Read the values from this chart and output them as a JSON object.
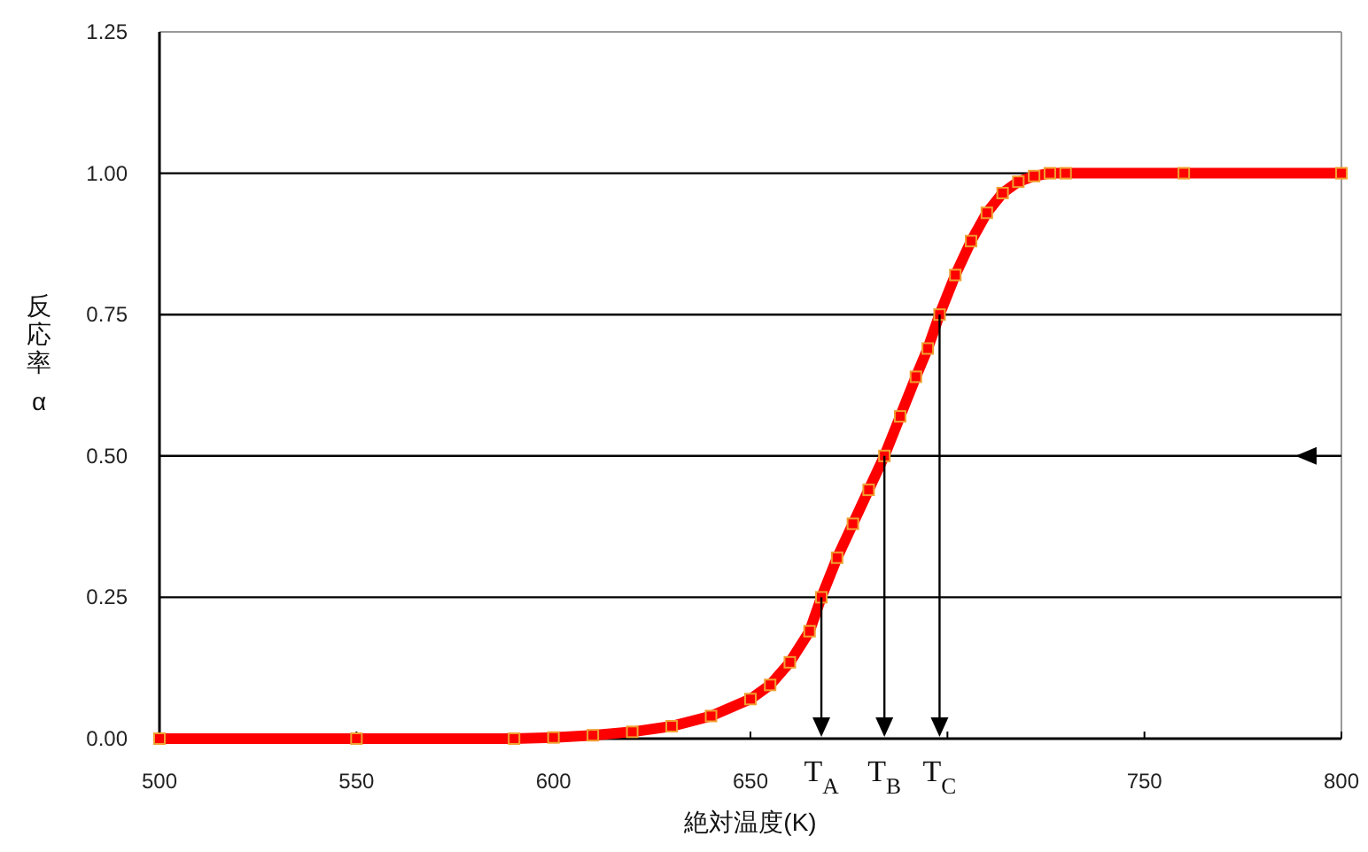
{
  "chart_data": {
    "type": "line",
    "xlabel": "絶対温度(K)",
    "ylabel": "反応率 α",
    "x": [
      500,
      550,
      590,
      600,
      610,
      620,
      630,
      640,
      650,
      655,
      660,
      665,
      668,
      672,
      676,
      680,
      684,
      688,
      692,
      695,
      698,
      702,
      706,
      710,
      714,
      718,
      722,
      726,
      730,
      760,
      800
    ],
    "series": [
      {
        "color": "#ff0000",
        "values": [
          0,
          0,
          0,
          0.002,
          0.006,
          0.012,
          0.022,
          0.04,
          0.07,
          0.095,
          0.135,
          0.19,
          0.25,
          0.32,
          0.38,
          0.44,
          0.5,
          0.57,
          0.64,
          0.69,
          0.75,
          0.82,
          0.88,
          0.93,
          0.965,
          0.985,
          0.995,
          1.0,
          1.0,
          1.0,
          1.0
        ]
      }
    ],
    "marker": "square",
    "line_style": "solid",
    "grid": "y",
    "xlim": [
      500,
      800
    ],
    "xticks": [
      500,
      550,
      600,
      650,
      {
        "value": 700,
        "label": null
      },
      750,
      800
    ],
    "ylim": [
      0,
      1.25
    ],
    "yticks": [
      {
        "value": 0,
        "label": "0.00"
      },
      {
        "value": 0.25,
        "label": "0.25"
      },
      {
        "value": 0.5,
        "label": "0.50"
      },
      {
        "value": 0.75,
        "label": "0.75"
      },
      {
        "value": 1,
        "label": "1.00"
      },
      {
        "value": 1.25,
        "label": "1.25"
      }
    ],
    "annotations": [
      {
        "text": "T$_{A}$",
        "x": 668,
        "y": 0.25
      },
      {
        "text": "T$_{B}$",
        "x": 684,
        "y": 0.5
      },
      {
        "text": "T$_{C}$",
        "x": 698,
        "y": 0.75
      }
    ]
  }
}
